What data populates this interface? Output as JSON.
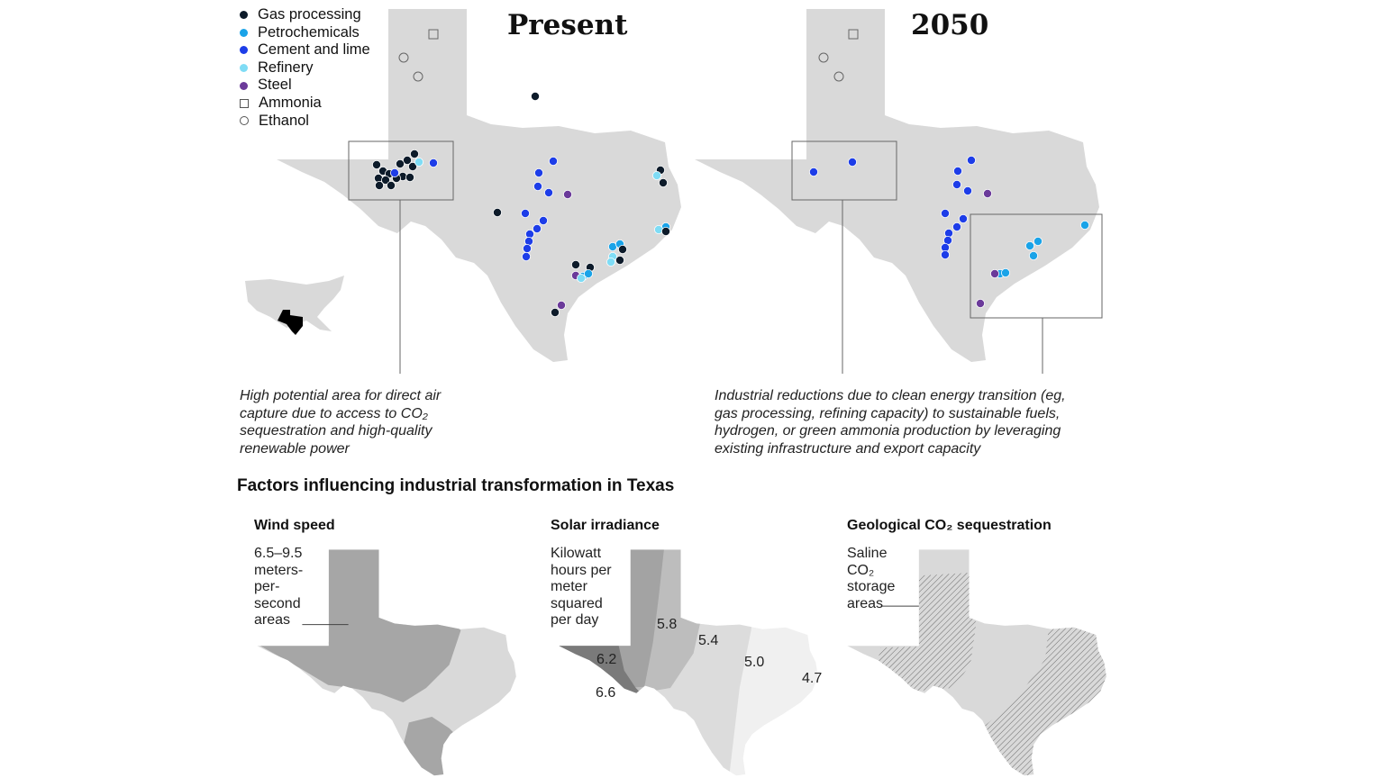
{
  "legend": [
    {
      "label": "Gas processing",
      "color": "#0d1b2a",
      "shape": "dot"
    },
    {
      "label": "Petrochemicals",
      "color": "#1aa3e8",
      "shape": "dot"
    },
    {
      "label": "Cement and lime",
      "color": "#1d3de8",
      "shape": "dot"
    },
    {
      "label": "Refinery",
      "color": "#7fdcf5",
      "shape": "dot"
    },
    {
      "label": "Steel",
      "color": "#6b3a9a",
      "shape": "dot"
    },
    {
      "label": "Ammonia",
      "color": "#555555",
      "shape": "square"
    },
    {
      "label": "Ethanol",
      "color": "#555555",
      "shape": "circle"
    }
  ],
  "maps": {
    "present_title": "Present",
    "future_title": "2050"
  },
  "captions": {
    "left": "High potential area for direct air capture due to access to CO₂ sequestration and high-quality renewable power",
    "right": "Industrial reductions due to clean energy transition (eg, gas processing, refining capacity) to sustainable fuels, hydrogen, or green ammonia production by leveraging existing infrastructure and export capacity"
  },
  "factors": {
    "title": "Factors influencing industrial transformation in Texas",
    "wind": {
      "title": "Wind speed",
      "label": "6.5–9.5 meters-per-second areas"
    },
    "solar": {
      "title": "Solar irradiance",
      "label": "Kilowatt hours per meter squared per day",
      "values": [
        "5.8",
        "5.4",
        "6.2",
        "5.0",
        "4.7",
        "6.6"
      ]
    },
    "geo": {
      "title": "Geological CO₂ sequestration",
      "label": "Saline CO₂ storage areas"
    }
  },
  "colors": {
    "land": "#d9d9d9",
    "wind_high": "#a6a6a6"
  }
}
